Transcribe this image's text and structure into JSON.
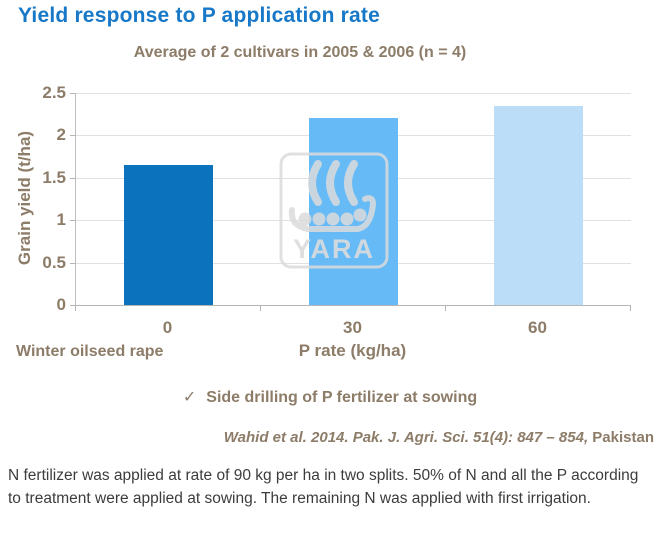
{
  "page": {
    "title": "Yield response to P application rate",
    "subtitle": "Average of 2 cultivars in 2005 & 2006 (n = 4)",
    "checkmark": "✓",
    "check_note": "Side drilling of P fertilizer at sowing",
    "citation_italic": "Wahid et al. 2014. Pak. J. Agri. Sci. 51(4): 847 – 854,",
    "citation_plain": " Pakistan",
    "footnote": "N fertilizer was applied at rate of 90 kg per ha in two splits. 50% of N and all the P according to treatment were applied at sowing. The remaining N was applied with first irrigation."
  },
  "chart_data": {
    "type": "bar",
    "title": "Average of 2 cultivars in 2005 & 2006 (n = 4)",
    "categories": [
      "0",
      "30",
      "60"
    ],
    "values": [
      1.65,
      2.2,
      2.35
    ],
    "series_label": "Winter oilseed rape",
    "xlabel": "P rate (kg/ha)",
    "ylabel": "Grain yield (t/ha)",
    "ylim": [
      0,
      2.5
    ],
    "yticks": [
      0,
      0.5,
      1,
      1.5,
      2,
      2.5
    ],
    "grid": true,
    "legend": "none",
    "bar_colors": [
      "#0b72be",
      "#66bbf7",
      "#bbddf8"
    ]
  },
  "watermark": {
    "text": "YARA",
    "icon": "yara-viking-ship-logo",
    "color": "rgba(219,219,219,0.8)"
  },
  "colors": {
    "title_blue": "#1778c8",
    "taupe": "#8c7c68",
    "gridline": "#e0e0e0",
    "axis": "#b5b5b5",
    "body_text": "#3c3c3c",
    "background": "#ffffff"
  }
}
